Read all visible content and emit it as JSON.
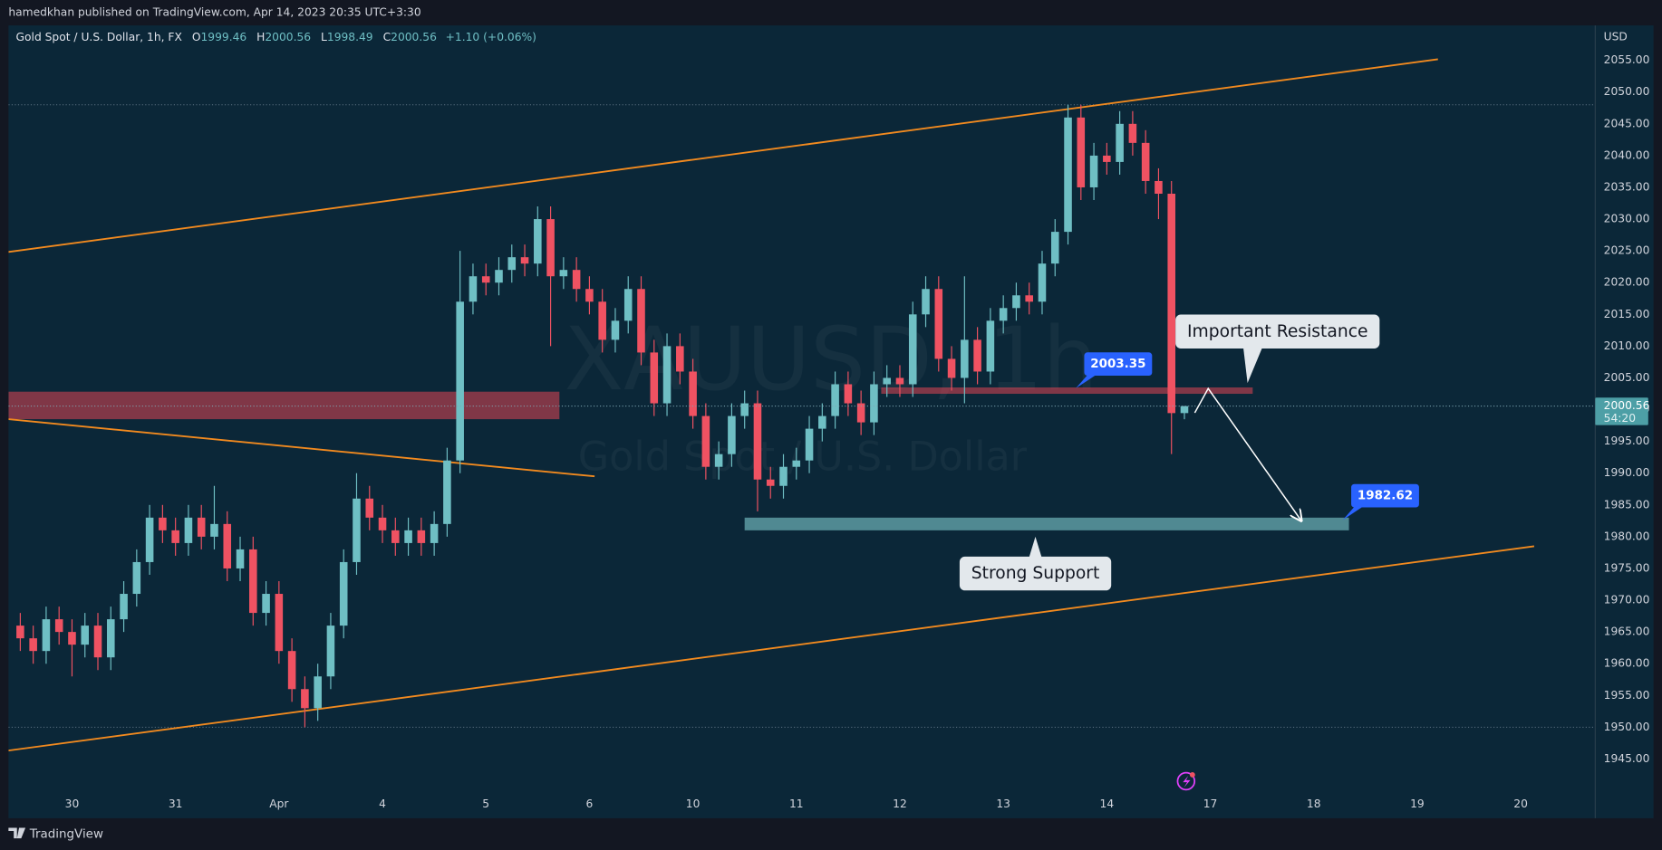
{
  "header": {
    "text": "hamedkhan published on TradingView.com, Apr 14, 2023 20:35 UTC+3:30"
  },
  "chart_data": {
    "type": "candlestick",
    "title": "Gold Spot / U.S. Dollar, 1h, FX",
    "ohlc_labels": [
      "O",
      "H",
      "L",
      "C"
    ],
    "change": "+1.10 (+0.06%)",
    "watermark": "XAUUSD, 1h",
    "watermark_subtitle": "Gold Spot / U.S. Dollar",
    "y_axis_label": "USD",
    "countdown": "54:20",
    "up_color": "#6fbfc4",
    "down_color": "#ef5262",
    "x": [
      -0.5,
      -0.375,
      -0.25,
      -0.125,
      0,
      0.125,
      0.25,
      0.375,
      0.5,
      0.625,
      0.75,
      0.875,
      1,
      1.125,
      1.25,
      1.375,
      1.5,
      1.625,
      1.75,
      1.875,
      2,
      2.125,
      2.25,
      2.375,
      2.5,
      2.625,
      2.75,
      2.875,
      3,
      3.125,
      3.25,
      3.375,
      3.5,
      3.625,
      3.75,
      3.875,
      4,
      4.125,
      4.25,
      4.375,
      4.5,
      4.625,
      4.75,
      4.875,
      5,
      5.125,
      5.25,
      5.375,
      5.5,
      5.625,
      5.75,
      5.875,
      6,
      6.125,
      6.25,
      6.375,
      6.5,
      6.625,
      6.75,
      6.875,
      7,
      7.125,
      7.25,
      7.375,
      7.5,
      7.625,
      7.75,
      7.875,
      8,
      8.125,
      8.25,
      8.375,
      8.5,
      8.625,
      8.75,
      8.875,
      9,
      9.125,
      9.25,
      9.375,
      9.5,
      9.625,
      9.75,
      9.875,
      10,
      10.125,
      10.25,
      10.375,
      10.5,
      10.625,
      10.75
    ],
    "open": [
      1966,
      1964,
      1962,
      1967,
      1965,
      1963,
      1966,
      1961,
      1967,
      1971,
      1976,
      1983,
      1981,
      1979,
      1983,
      1980,
      1982,
      1975,
      1978,
      1968,
      1971,
      1962,
      1956,
      1953,
      1958,
      1966,
      1976,
      1986,
      1983,
      1981,
      1979,
      1981,
      1979,
      1982,
      1992,
      2017,
      2021,
      2020,
      2022,
      2024,
      2023,
      2030,
      2021,
      2022,
      2019,
      2017,
      2011,
      2014,
      2019,
      2009,
      2001,
      2010,
      2006,
      1999,
      1991,
      1993,
      1999,
      2001,
      1989,
      1988,
      1991,
      1992,
      1997,
      1999,
      2004,
      2001,
      1998,
      2004,
      2005,
      2004,
      2015,
      2019,
      2008,
      2005,
      2011,
      2006,
      2014,
      2016,
      2018,
      2017,
      2023,
      2028,
      2046,
      2035,
      2040,
      2039,
      2045,
      2042,
      2036,
      2034,
      1999.46
    ],
    "high": [
      1968,
      1966,
      1969,
      1969,
      1967,
      1968,
      1968,
      1969,
      1973,
      1978,
      1985,
      1985,
      1983,
      1985,
      1985,
      1988,
      1984,
      1980,
      1980,
      1973,
      1973,
      1964,
      1958,
      1960,
      1968,
      1978,
      1990,
      1988,
      1985,
      1983,
      1983,
      1983,
      1984,
      1994,
      2025,
      2023,
      2023,
      2024,
      2026,
      2026,
      2032,
      2032,
      2024,
      2024,
      2021,
      2019,
      2016,
      2021,
      2021,
      2011,
      2012,
      2012,
      2008,
      2001,
      1995,
      2001,
      2003,
      2003,
      1991,
      1993,
      1994,
      1999,
      2001,
      2006,
      2006,
      2003,
      2006,
      2007,
      2007,
      2017,
      2021,
      2021,
      2010,
      2021,
      2013,
      2016,
      2018,
      2020,
      2020,
      2025,
      2030,
      2048,
      2048,
      2042,
      2042,
      2047,
      2047,
      2044,
      2038,
      2036,
      2000.56
    ],
    "low": [
      1962,
      1960,
      1960,
      1963,
      1958,
      1961,
      1959,
      1959,
      1965,
      1969,
      1974,
      1979,
      1977,
      1977,
      1978,
      1978,
      1973,
      1973,
      1966,
      1966,
      1960,
      1954,
      1950,
      1951,
      1956,
      1964,
      1974,
      1981,
      1979,
      1977,
      1977,
      1977,
      1977,
      1980,
      1990,
      2015,
      2018,
      2018,
      2020,
      2021,
      2021,
      2010,
      2019,
      2017,
      2015,
      2009,
      2009,
      2012,
      2007,
      1999,
      1999,
      2004,
      1997,
      1989,
      1989,
      1991,
      1997,
      1984,
      1986,
      1986,
      1989,
      1990,
      1995,
      1997,
      1999,
      1996,
      1996,
      2002,
      2002,
      2002,
      2013,
      2006,
      2003,
      2001,
      2004,
      2004,
      2012,
      2014,
      2015,
      2015,
      2021,
      2026,
      2033,
      2033,
      2037,
      2037,
      2040,
      2034,
      2030,
      1993,
      1998.49
    ],
    "close": [
      1964,
      1962,
      1967,
      1965,
      1963,
      1966,
      1961,
      1967,
      1971,
      1976,
      1983,
      1981,
      1979,
      1983,
      1980,
      1982,
      1975,
      1978,
      1968,
      1971,
      1962,
      1956,
      1953,
      1958,
      1966,
      1976,
      1986,
      1983,
      1981,
      1979,
      1981,
      1979,
      1982,
      1992,
      2017,
      2021,
      2020,
      2022,
      2024,
      2023,
      2030,
      2021,
      2022,
      2019,
      2017,
      2011,
      2014,
      2019,
      2009,
      2001,
      2010,
      2006,
      1999,
      1991,
      1993,
      1999,
      2001,
      1989,
      1988,
      1991,
      1992,
      1997,
      1999,
      2004,
      2001,
      1998,
      2004,
      2005,
      2004,
      2015,
      2019,
      2008,
      2005,
      2011,
      2006,
      2014,
      2016,
      2018,
      2017,
      2023,
      2028,
      2046,
      2035,
      2040,
      2039,
      2045,
      2042,
      2036,
      2034,
      1999.46,
      2000.56
    ],
    "xlim": [
      -0.614,
      14.72
    ],
    "xticks": [
      {
        "value": 0,
        "label": "30"
      },
      {
        "value": 1,
        "label": "31"
      },
      {
        "value": 2,
        "label": "Apr"
      },
      {
        "value": 3,
        "label": "4"
      },
      {
        "value": 4,
        "label": "5"
      },
      {
        "value": 5,
        "label": "6"
      },
      {
        "value": 6,
        "label": "10"
      },
      {
        "value": 7,
        "label": "11"
      },
      {
        "value": 8,
        "label": "12"
      },
      {
        "value": 9,
        "label": "13"
      },
      {
        "value": 10,
        "label": "14"
      },
      {
        "value": 11,
        "label": "17"
      },
      {
        "value": 12,
        "label": "18"
      },
      {
        "value": 13,
        "label": "19"
      },
      {
        "value": 14,
        "label": "20"
      }
    ],
    "ylim": [
      1935.67,
      2060.5
    ],
    "yticks": [
      {
        "value": 1945,
        "label": "1945.00"
      },
      {
        "value": 1950,
        "label": "1950.00"
      },
      {
        "value": 1955,
        "label": "1955.00"
      },
      {
        "value": 1960,
        "label": "1960.00"
      },
      {
        "value": 1965,
        "label": "1965.00"
      },
      {
        "value": 1970,
        "label": "1970.00"
      },
      {
        "value": 1975,
        "label": "1975.00"
      },
      {
        "value": 1980,
        "label": "1980.00"
      },
      {
        "value": 1985,
        "label": "1985.00"
      },
      {
        "value": 1990,
        "label": "1990.00"
      },
      {
        "value": 1995,
        "label": "1995.00"
      },
      {
        "value": 2000,
        "label": "2000.00"
      },
      {
        "value": 2005,
        "label": "2005.00"
      },
      {
        "value": 2010,
        "label": "2010.00"
      },
      {
        "value": 2015,
        "label": "2015.00"
      },
      {
        "value": 2020,
        "label": "2020.00"
      },
      {
        "value": 2025,
        "label": "2025.00"
      },
      {
        "value": 2030,
        "label": "2030.00"
      },
      {
        "value": 2035,
        "label": "2035.00"
      },
      {
        "value": 2040,
        "label": "2040.00"
      },
      {
        "value": 2045,
        "label": "2045.00"
      },
      {
        "value": 2050,
        "label": "2050.00"
      },
      {
        "value": 2055,
        "label": "2055.00"
      }
    ],
    "trend_lines": [
      {
        "color": "#f28a1f",
        "points": [
          [
            -0.614,
            2024.83
          ],
          [
            13.2,
            2055.17
          ]
        ]
      },
      {
        "color": "#f28a1f",
        "points": [
          [
            -0.614,
            1946.33
          ],
          [
            14.13,
            1978.5
          ]
        ]
      },
      {
        "color": "#f28a1f",
        "points": [
          [
            -0.614,
            1998.5
          ],
          [
            5.05,
            1989.5
          ]
        ]
      }
    ],
    "zones": [
      {
        "color": "rgba(226,70,84,0.55)",
        "x": [
          -0.614,
          4.71
        ],
        "y": [
          1998.5,
          2002.83
        ]
      },
      {
        "color": "rgba(226,70,84,0.55)",
        "x": [
          7.82,
          11.41
        ],
        "y": [
          2002.5,
          2003.5
        ]
      },
      {
        "color": "rgba(110,180,185,0.7)",
        "x": [
          6.5,
          12.34
        ],
        "y": [
          1981.0,
          1983.0
        ]
      }
    ],
    "arrow": {
      "color": "#ffffff",
      "points": [
        [
          10.85,
          1999.5
        ],
        [
          10.98,
          2003.33
        ],
        [
          11.88,
          1982.5
        ]
      ]
    },
    "price_labels": [
      {
        "x": 9.7,
        "value": 2003.35
      },
      {
        "x": 12.28,
        "value": 1982.62
      }
    ],
    "callouts": [
      {
        "text": "Important Resistance",
        "box": [
          11.65,
          2012.3
        ],
        "anchor": [
          11.36,
          2004.2
        ]
      },
      {
        "text": "Strong Support",
        "box": [
          9.31,
          1974.2
        ],
        "anchor": [
          9.31,
          1980.0
        ]
      }
    ]
  },
  "footer": {
    "brand": "TradingView"
  }
}
